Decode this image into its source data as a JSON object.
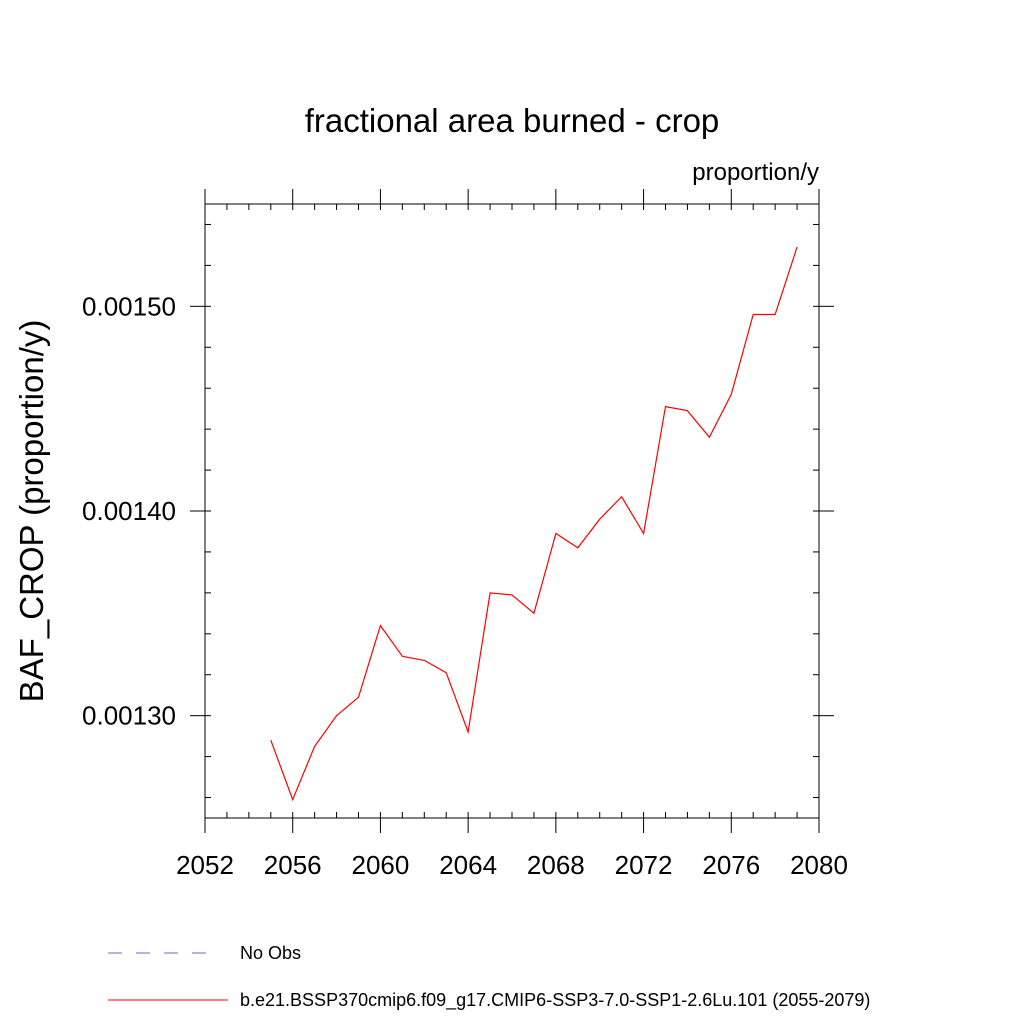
{
  "chart_data": {
    "type": "line",
    "title": "fractional area burned - crop",
    "units_label": "proportion/y",
    "ylabel": "BAF_CROP  (proportion/y)",
    "xlabel": "",
    "xlim": [
      2052,
      2080
    ],
    "ylim": [
      0.00125,
      0.00155
    ],
    "x_ticks": [
      2052,
      2056,
      2060,
      2064,
      2068,
      2072,
      2076,
      2080
    ],
    "x_minor_step": 1,
    "y_ticks": [
      0.0013,
      0.0014,
      0.0015
    ],
    "y_tick_labels": [
      "0.00130",
      "0.00140",
      "0.00150"
    ],
    "y_minor_step": 2e-05,
    "series": [
      {
        "name": "b.e21.BSSP370cmip6.f09_g17.CMIP6-SSP3-7.0-SSP1-2.6Lu.101 (2055-2079)",
        "color": "#ff0000",
        "style": "solid",
        "x": [
          2055,
          2056,
          2057,
          2058,
          2059,
          2060,
          2061,
          2062,
          2063,
          2064,
          2065,
          2066,
          2067,
          2068,
          2069,
          2070,
          2071,
          2072,
          2073,
          2074,
          2075,
          2076,
          2077,
          2078,
          2079
        ],
        "values": [
          0.001288,
          0.001259,
          0.001285,
          0.0013,
          0.001309,
          0.001344,
          0.001329,
          0.001327,
          0.001321,
          0.001292,
          0.00136,
          0.001359,
          0.00135,
          0.001389,
          0.001382,
          0.001396,
          0.001407,
          0.001389,
          0.001451,
          0.001449,
          0.001436,
          0.001457,
          0.001496,
          0.001496,
          0.001529
        ]
      }
    ],
    "legend": [
      {
        "label": "No Obs",
        "color": "#6b6bb5",
        "style": "dashed"
      },
      {
        "label": "b.e21.BSSP370cmip6.f09_g17.CMIP6-SSP3-7.0-SSP1-2.6Lu.101 (2055-2079)",
        "color": "#ff0000",
        "style": "solid"
      }
    ]
  }
}
